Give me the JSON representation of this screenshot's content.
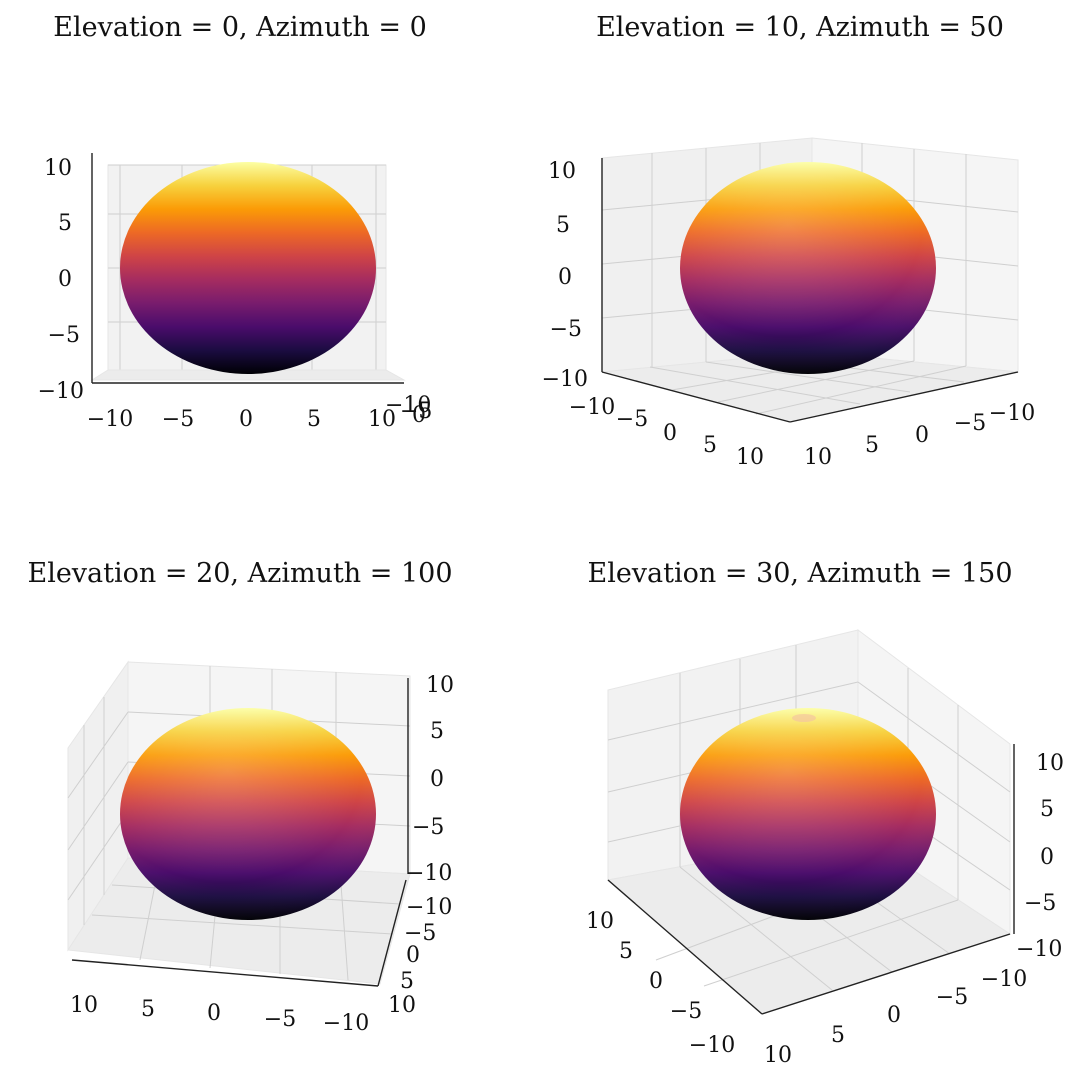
{
  "chart_data": [
    {
      "type": "surface",
      "title": "Elevation = 0, Azimuth = 0",
      "elevation": 0,
      "azimuth": 0,
      "surface": "sphere",
      "radius": 10,
      "colormap": "inferno",
      "xlim": [
        -10,
        10
      ],
      "ylim": [
        -10,
        10
      ],
      "zlim": [
        -10,
        10
      ],
      "x_ticks": [
        "−10",
        "−5",
        "0",
        "5",
        "10"
      ],
      "y_ticks": [
        "−10",
        "−5",
        "0"
      ],
      "z_ticks": [
        "10",
        "5",
        "0",
        "−5",
        "−10"
      ],
      "grid": true
    },
    {
      "type": "surface",
      "title": "Elevation = 10, Azimuth = 50",
      "elevation": 10,
      "azimuth": 50,
      "surface": "sphere",
      "radius": 10,
      "colormap": "inferno",
      "xlim": [
        -10,
        10
      ],
      "ylim": [
        -10,
        10
      ],
      "zlim": [
        -10,
        10
      ],
      "x_ticks": [
        "−10",
        "−5",
        "0",
        "5",
        "10"
      ],
      "y_ticks": [
        "10",
        "5",
        "0",
        "−5",
        "−10"
      ],
      "z_ticks": [
        "10",
        "5",
        "0",
        "−5",
        "−10"
      ],
      "grid": true
    },
    {
      "type": "surface",
      "title": "Elevation = 20, Azimuth = 100",
      "elevation": 20,
      "azimuth": 100,
      "surface": "sphere",
      "radius": 10,
      "colormap": "inferno",
      "xlim": [
        -10,
        10
      ],
      "ylim": [
        -10,
        10
      ],
      "zlim": [
        -10,
        10
      ],
      "x_ticks": [
        "−10",
        "−5",
        "0",
        "5",
        "10"
      ],
      "y_ticks": [
        "10",
        "5",
        "0",
        "−5",
        "−10"
      ],
      "z_ticks": [
        "10",
        "5",
        "0",
        "−5",
        "−10"
      ],
      "grid": true
    },
    {
      "type": "surface",
      "title": "Elevation = 30, Azimuth = 150",
      "elevation": 30,
      "azimuth": 150,
      "surface": "sphere",
      "radius": 10,
      "colormap": "inferno",
      "xlim": [
        -10,
        10
      ],
      "ylim": [
        -10,
        10
      ],
      "zlim": [
        -10,
        10
      ],
      "x_ticks": [
        "10",
        "5",
        "0",
        "−5",
        "−10"
      ],
      "y_ticks": [
        "10",
        "5",
        "0",
        "−5",
        "−10"
      ],
      "z_ticks": [
        "10",
        "5",
        "0",
        "−5",
        "−10"
      ],
      "grid": true
    }
  ],
  "colormap_stops": [
    "#000004",
    "#1b0c41",
    "#4a0c6b",
    "#781c6d",
    "#a52c60",
    "#cf4446",
    "#ed6925",
    "#fb9b06",
    "#f7d13d",
    "#fcffa4"
  ]
}
